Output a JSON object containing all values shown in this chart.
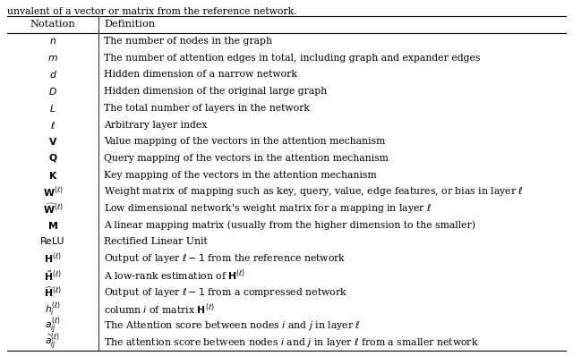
{
  "header_text": "unvalent of a vector or matrix from the reference network.",
  "col1_header": "Notation",
  "col2_header": "Definition",
  "rows": [
    [
      "$n$",
      "The number of nodes in the graph"
    ],
    [
      "$m$",
      "The number of attention edges in total, including graph and expander edges"
    ],
    [
      "$d$",
      "Hidden dimension of a narrow network"
    ],
    [
      "$D$",
      "Hidden dimension of the original large graph"
    ],
    [
      "$L$",
      "The total number of layers in the network"
    ],
    [
      "$\\ell$",
      "Arbitrary layer index"
    ],
    [
      "$\\mathbf{V}$",
      "Value mapping of the vectors in the attention mechanism"
    ],
    [
      "$\\mathbf{Q}$",
      "Query mapping of the vectors in the attention mechanism"
    ],
    [
      "$\\mathbf{K}$",
      "Key mapping of the vectors in the attention mechanism"
    ],
    [
      "$\\mathbf{W}^{(\\ell)}$",
      "Weight matrix of mapping such as key, query, value, edge features, or bias in layer $\\ell$"
    ],
    [
      "$\\widehat{\\mathbf{W}}^{(\\ell)}$",
      "Low dimensional network's weight matrix for a mapping in layer $\\ell$"
    ],
    [
      "$\\mathbf{M}$",
      "A linear mapping matrix (usually from the higher dimension to the smaller)"
    ],
    [
      "ReLU",
      "Rectified Linear Unit"
    ],
    [
      "$\\mathbf{H}^{(\\ell)}$",
      "Output of layer $\\ell - 1$ from the reference network"
    ],
    [
      "$\\tilde{\\mathbf{H}}^{(\\ell)}$",
      "A low-rank estimation of $\\mathbf{H}^{(\\ell)}$"
    ],
    [
      "$\\widehat{\\mathbf{H}}^{(\\ell)}$",
      "Output of layer $\\ell - 1$ from a compressed network"
    ],
    [
      "$h_i^{(\\ell)}$",
      "column $i$ of matrix $\\mathbf{H}^{(\\ell)}$"
    ],
    [
      "$a_{ij}^{(\\ell)}$",
      "The Attention score between nodes $i$ and $j$ in layer $\\ell$"
    ],
    [
      "$\\hat{a}_{ij}^{(\\ell)}$",
      "The attention score between nodes $i$ and $j$ in layer $\\ell$ from a smaller network"
    ]
  ],
  "bg_color": "#ffffff",
  "line_color": "#000000",
  "text_color": "#000000",
  "fontsize": 7.8,
  "header_fontsize": 8.2,
  "above_text_fontsize": 7.8,
  "fig_width": 6.4,
  "fig_height": 3.98,
  "dpi": 100
}
